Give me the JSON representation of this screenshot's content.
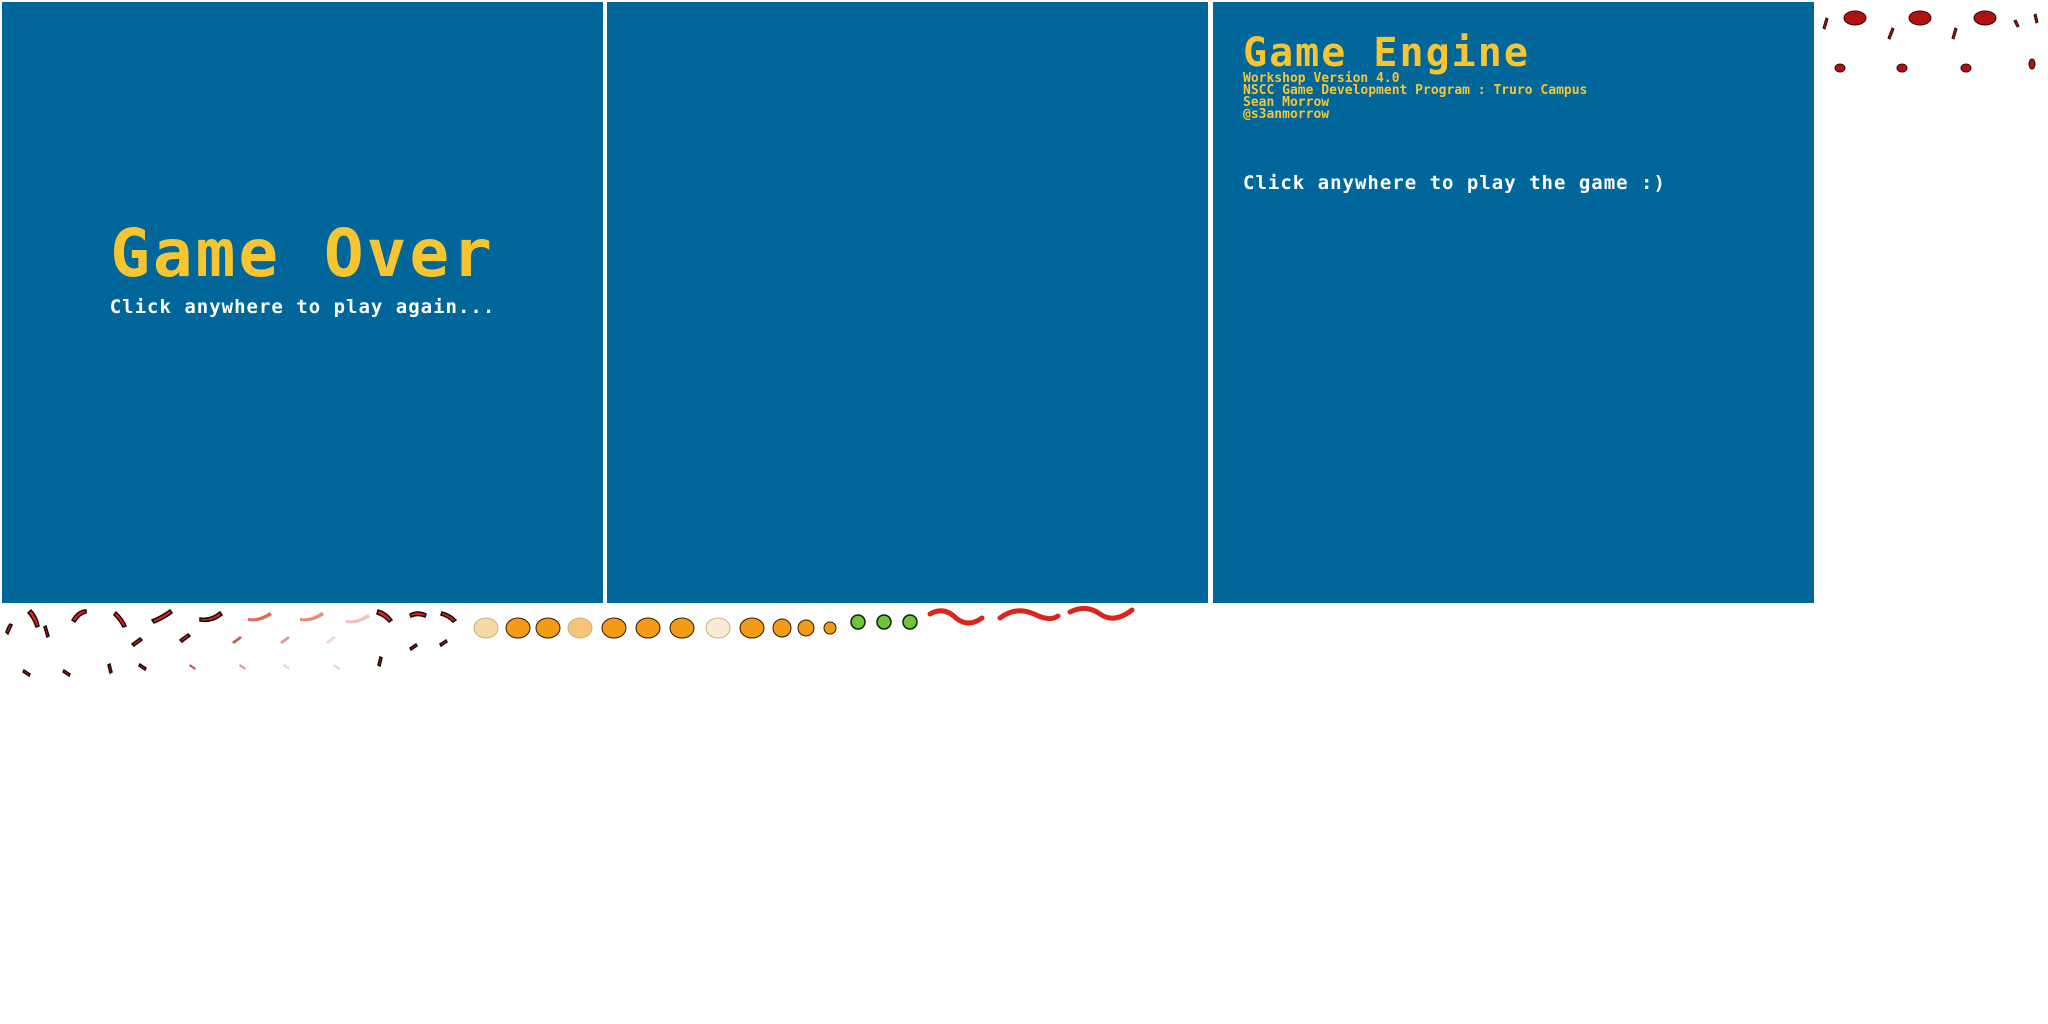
{
  "gameover_screen": {
    "title": "Game Over",
    "subtitle": "Click anywhere to play again..."
  },
  "intro_screen": {
    "title": "Game Engine",
    "credits": [
      "Workshop Version 4.0",
      "NSCC Game Development Program : Truro Campus",
      "Sean Morrow",
      "@s3anmorrow"
    ],
    "subtitle": "Click anywhere to play the game :)"
  },
  "colors": {
    "panel_bg": "#01669a",
    "title_yellow": "#f7c532",
    "text_white": "#ffffff",
    "snake_red": "#d8261c",
    "bug_orange": "#f39a16",
    "bug_green": "#6fc43a"
  },
  "sprites": {
    "top_right": "splat-sprites",
    "strip": [
      "snake-segment-sprites",
      "snake-fading-sprites",
      "bug-sprites",
      "bug-fading-sprites",
      "green-bug-sprites",
      "snake-body-sprites"
    ]
  }
}
